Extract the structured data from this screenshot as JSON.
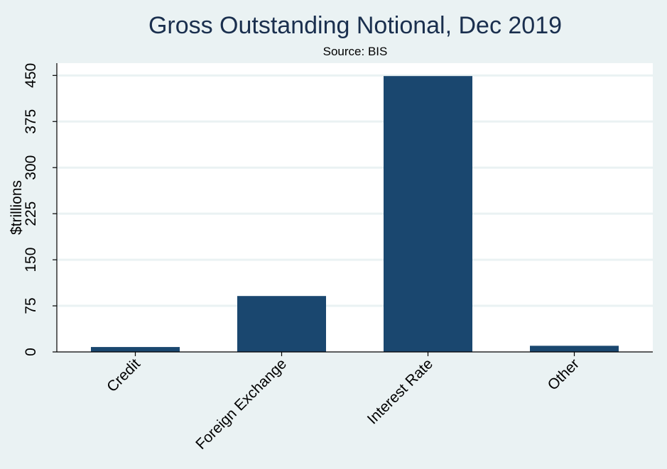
{
  "chart_data": {
    "type": "bar",
    "title": "Gross Outstanding Notional, Dec 2019",
    "subtitle": "Source: BIS",
    "xlabel": "",
    "ylabel": "$trillions",
    "categories": [
      "Credit",
      "Foreign Exchange",
      "Interest Rate",
      "Other"
    ],
    "values": [
      8,
      91,
      449,
      10
    ],
    "ylim": [
      0,
      470
    ],
    "yticks": [
      0,
      75,
      150,
      225,
      300,
      375,
      450
    ],
    "ytick_labels": [
      "0",
      "75",
      "150",
      "225",
      "300",
      "375",
      "450"
    ],
    "grid": true,
    "legend": "none",
    "colors": {
      "bar": "#1a476f",
      "plot_background": "#ffffff",
      "page_background": "#eaf2f3",
      "title": "#1a2f4e"
    }
  }
}
